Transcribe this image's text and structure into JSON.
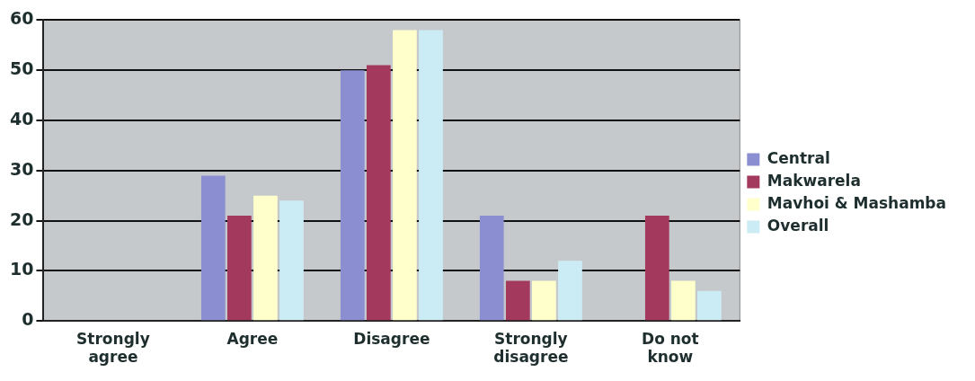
{
  "chart_data": {
    "type": "bar",
    "categories": [
      "Strongly agree",
      "Agree",
      "Disagree",
      "Strongly disagree",
      "Do not know"
    ],
    "series": [
      {
        "name": "Central",
        "color": "#8b8fd1",
        "values": [
          0,
          29,
          50,
          21,
          0
        ]
      },
      {
        "name": "Makwarela",
        "color": "#a33a5e",
        "values": [
          0,
          21,
          51,
          8,
          21
        ]
      },
      {
        "name": "Mavhoi & Mashamba",
        "color": "#ffffcc",
        "values": [
          0,
          25,
          58,
          8,
          8
        ]
      },
      {
        "name": "Overall",
        "color": "#ccecf5",
        "values": [
          0,
          24,
          58,
          12,
          6
        ]
      }
    ],
    "ylim": [
      0,
      60
    ],
    "yticks": [
      0,
      10,
      20,
      30,
      40,
      50,
      60
    ],
    "grid": "y",
    "legend": "right"
  }
}
